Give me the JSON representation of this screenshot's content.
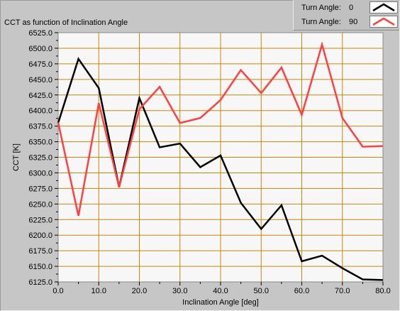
{
  "chart_data": {
    "type": "line",
    "title": "CCT as function of Inclination Angle",
    "xlabel": "Inclination Angle [deg]",
    "ylabel": "CCT [K]",
    "xlim": [
      0,
      80
    ],
    "ylim": [
      6125,
      6525
    ],
    "xticks": [
      0,
      10,
      20,
      30,
      40,
      50,
      60,
      70,
      80
    ],
    "xtick_labels": [
      "0.0",
      "10.0",
      "20.0",
      "30.0",
      "40.0",
      "50.0",
      "60.0",
      "70.0",
      "80.0"
    ],
    "xminor_step": 5,
    "yticks": [
      6125,
      6150,
      6175,
      6200,
      6225,
      6250,
      6275,
      6300,
      6325,
      6350,
      6375,
      6400,
      6425,
      6450,
      6475,
      6500,
      6525
    ],
    "ytick_labels": [
      "6125.0",
      "6150.0",
      "6175.0",
      "6200.0",
      "6225.0",
      "6250.0",
      "6275.0",
      "6300.0",
      "6325.0",
      "6350.0",
      "6375.0",
      "6400.0",
      "6425.0",
      "6450.0",
      "6475.0",
      "6500.0",
      "6525.0"
    ],
    "grid": true,
    "legend_position": "top-right",
    "x": [
      0,
      5,
      10,
      15,
      20,
      25,
      30,
      35,
      40,
      45,
      50,
      55,
      60,
      65,
      70,
      75,
      80
    ],
    "series": [
      {
        "name": "0",
        "color": "#000000",
        "values": [
          6380,
          6483,
          6436,
          6277,
          6420,
          6341,
          6347,
          6309,
          6328,
          6252,
          6210,
          6248,
          6158,
          6167,
          6147,
          6129,
          6128
        ]
      },
      {
        "name": "90",
        "color": "#ff4040",
        "values": [
          6381,
          6231,
          6412,
          6277,
          6402,
          6438,
          6380,
          6388,
          6417,
          6465,
          6428,
          6469,
          6393,
          6506,
          6388,
          6342,
          6343
        ]
      }
    ]
  },
  "legend": {
    "label": "Turn Angle:",
    "entries": [
      {
        "value": "0"
      },
      {
        "value": "90"
      }
    ]
  },
  "colors": {
    "panel": "#c6c6c6",
    "plot_background": "#f7f7f7",
    "grid": "#c8860a"
  }
}
